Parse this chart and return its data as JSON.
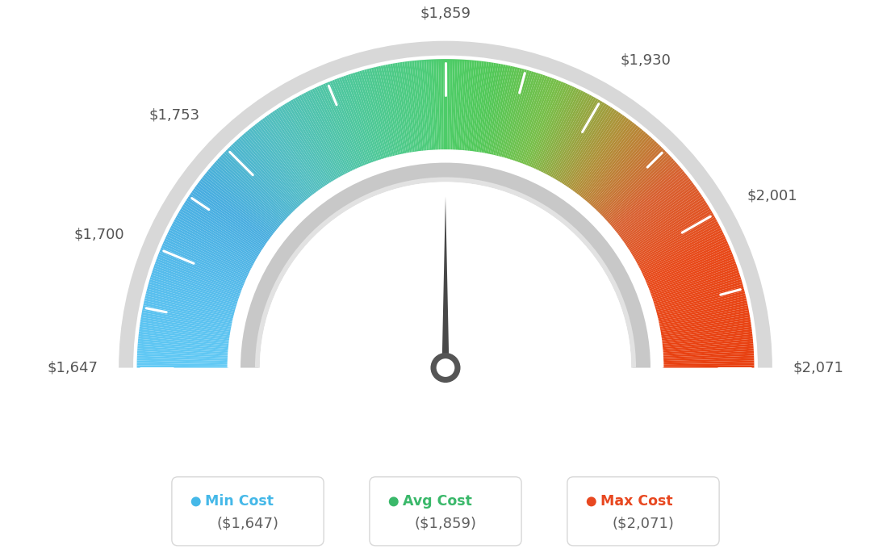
{
  "min_val": 1647,
  "max_val": 2071,
  "avg_val": 1859,
  "needle_value": 1859,
  "tick_labels": [
    "$1,647",
    "$1,700",
    "$1,753",
    "$1,859",
    "$1,930",
    "$2,001",
    "$2,071"
  ],
  "tick_values": [
    1647,
    1700,
    1753,
    1859,
    1930,
    2001,
    2071
  ],
  "legend": [
    {
      "label": "Min Cost",
      "value": "($1,647)",
      "color": "#45b8e8"
    },
    {
      "label": "Avg Cost",
      "value": "($1,859)",
      "color": "#3ab86a"
    },
    {
      "label": "Max Cost",
      "value": "($2,071)",
      "color": "#e84820"
    }
  ],
  "color_stops": [
    [
      0.0,
      "#62caf5"
    ],
    [
      0.1,
      "#55bcec"
    ],
    [
      0.2,
      "#48ade0"
    ],
    [
      0.3,
      "#52bec0"
    ],
    [
      0.4,
      "#4dc898"
    ],
    [
      0.48,
      "#4dcc78"
    ],
    [
      0.5,
      "#4dcc68"
    ],
    [
      0.55,
      "#52c858"
    ],
    [
      0.62,
      "#78be48"
    ],
    [
      0.7,
      "#b09038"
    ],
    [
      0.78,
      "#d86030"
    ],
    [
      0.87,
      "#e84818"
    ],
    [
      1.0,
      "#e84010"
    ]
  ],
  "bg_color": "#ffffff",
  "R_outer": 1.28,
  "R_inner": 0.9,
  "R_grey_outer": 1.355,
  "R_grey_inner": 1.295,
  "R_white_outer": 0.905,
  "R_white_inner": 0.845,
  "R_darkgrey_outer": 0.85,
  "R_darkgrey_inner": 0.775
}
